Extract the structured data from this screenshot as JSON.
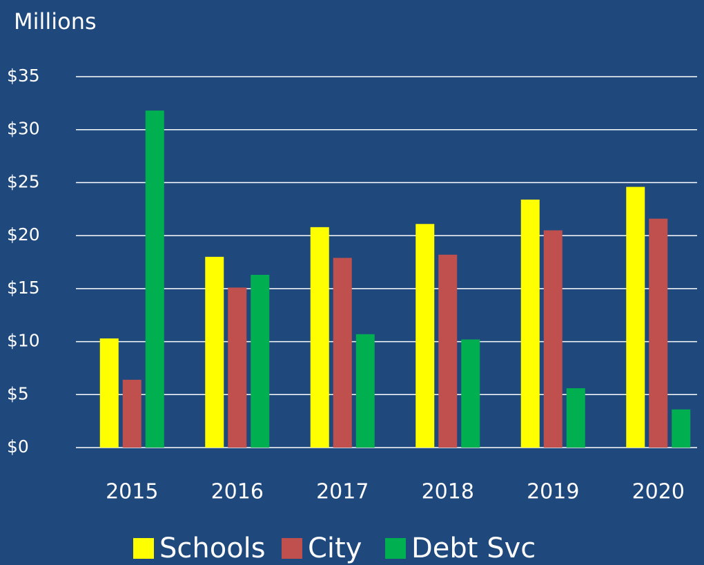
{
  "chart_data": {
    "type": "bar",
    "title": "Millions",
    "categories": [
      "2015",
      "2016",
      "2017",
      "2018",
      "2019",
      "2020"
    ],
    "series": [
      {
        "name": "Schools",
        "color": "#ffff00",
        "values": [
          10.3,
          18.0,
          20.8,
          21.1,
          23.4,
          24.6
        ]
      },
      {
        "name": "City",
        "color": "#c0504d",
        "values": [
          6.4,
          15.1,
          17.9,
          18.2,
          20.5,
          21.6
        ]
      },
      {
        "name": "Debt Svc",
        "color": "#00b050",
        "values": [
          31.8,
          16.3,
          10.7,
          10.2,
          5.6,
          3.6
        ]
      }
    ],
    "ylim": [
      0,
      35
    ],
    "yticks": [
      {
        "value": 0,
        "label": "$0"
      },
      {
        "value": 5,
        "label": "$5"
      },
      {
        "value": 10,
        "label": "$10"
      },
      {
        "value": 15,
        "label": "$15"
      },
      {
        "value": 20,
        "label": "$20"
      },
      {
        "value": 25,
        "label": "$25"
      },
      {
        "value": 30,
        "label": "$30"
      },
      {
        "value": 35,
        "label": "$35"
      }
    ],
    "grid": true,
    "legend": "bottom"
  }
}
